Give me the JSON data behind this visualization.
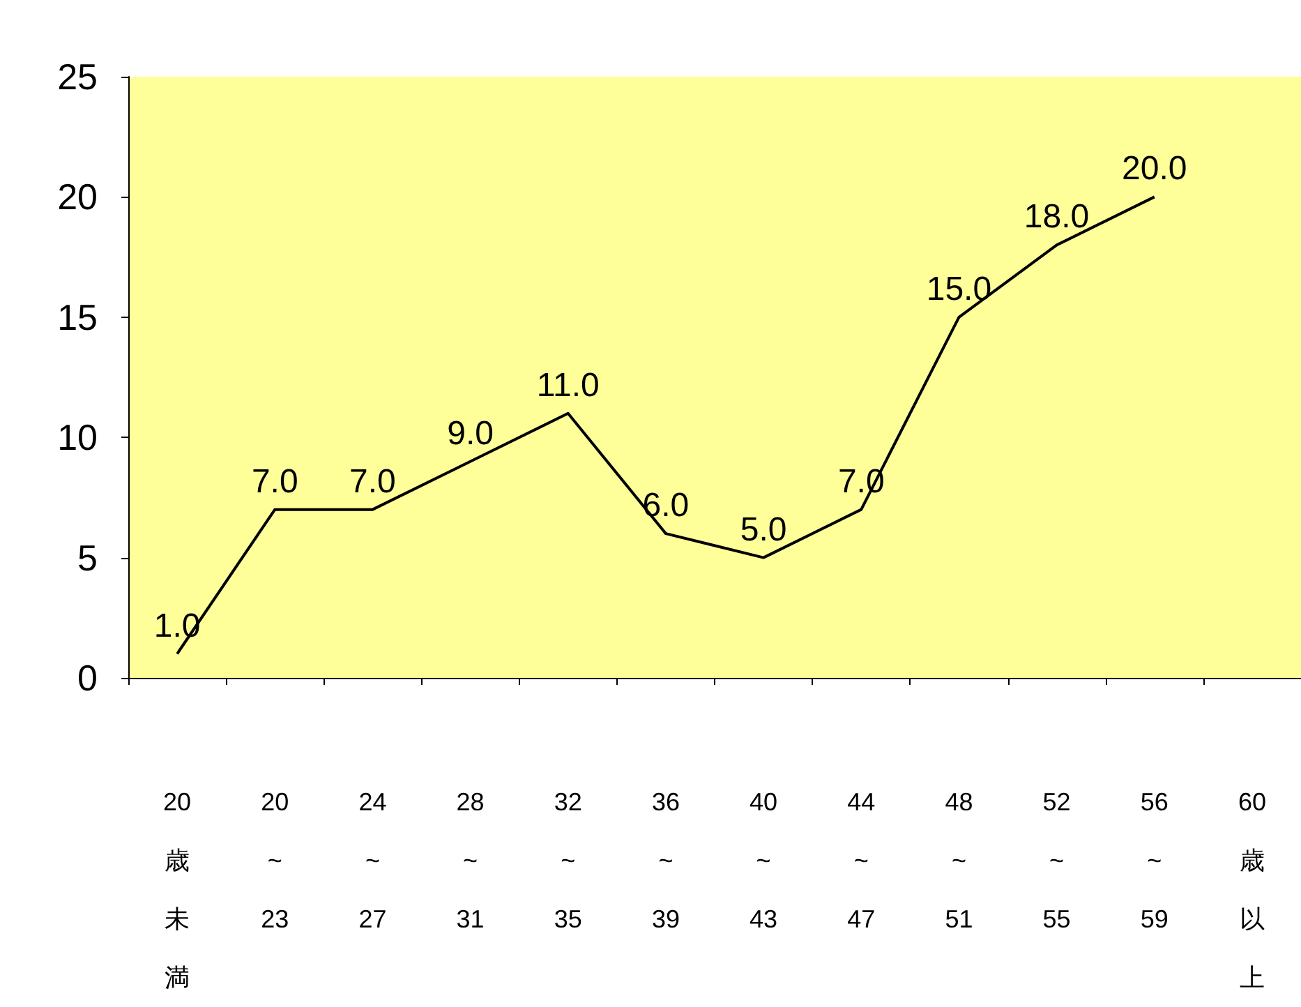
{
  "chart_data": {
    "type": "line",
    "categories": [
      "20歳未満",
      "20~23",
      "24~27",
      "28~31",
      "32~35",
      "36~39",
      "40~43",
      "44~47",
      "48~51",
      "52~55",
      "56~59",
      "60歳以上"
    ],
    "series": [
      {
        "color": "#000000",
        "values": [
          1.0,
          7.0,
          7.0,
          9.0,
          11.0,
          6.0,
          5.0,
          7.0,
          15.0,
          18.0,
          20.0,
          null
        ],
        "value_labels": [
          "1.0",
          "7.0",
          "7.0",
          "9.0",
          "11.0",
          "6.0",
          "5.0",
          "7.0",
          "15.0",
          "18.0",
          "20.0",
          null
        ]
      }
    ],
    "ylim": [
      0,
      25
    ],
    "yticks": [
      0,
      5,
      10,
      15,
      20,
      25
    ],
    "grid": false,
    "marker": "none",
    "line_style": "solid"
  }
}
